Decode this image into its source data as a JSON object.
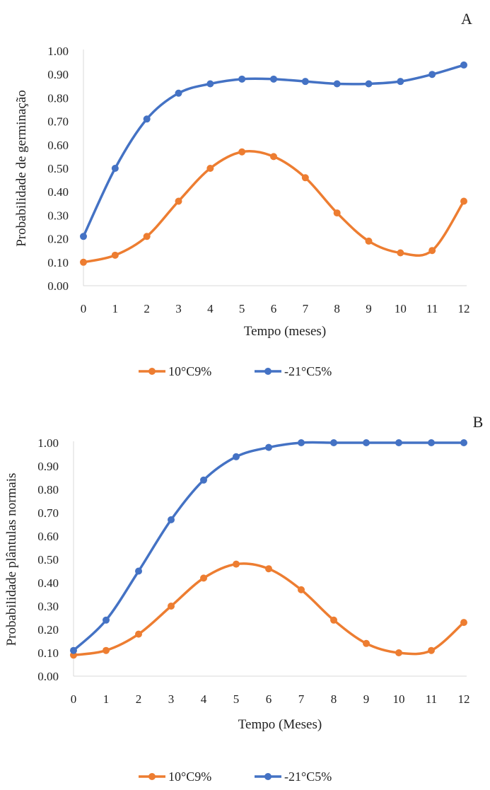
{
  "chart_data": [
    {
      "type": "line",
      "panel_label": "A",
      "title": "",
      "xlabel": "Tempo (meses)",
      "ylabel": "Probabilidade de germinação",
      "x": [
        0,
        1,
        2,
        3,
        4,
        5,
        6,
        7,
        8,
        9,
        10,
        11,
        12
      ],
      "ylim": [
        0,
        1
      ],
      "yticks": [
        "0.00",
        "0.10",
        "0.20",
        "0.30",
        "0.40",
        "0.50",
        "0.60",
        "0.70",
        "0.80",
        "0.90",
        "1.00"
      ],
      "grid": false,
      "legend_position": "bottom",
      "series": [
        {
          "name": "10°C9%",
          "color": "#ed7d31",
          "values": [
            0.1,
            0.13,
            0.21,
            0.36,
            0.5,
            0.57,
            0.55,
            0.46,
            0.31,
            0.19,
            0.14,
            0.15,
            0.36
          ]
        },
        {
          "name": "-21°C5%",
          "color": "#4472c4",
          "values": [
            0.21,
            0.5,
            0.71,
            0.82,
            0.86,
            0.88,
            0.88,
            0.87,
            0.86,
            0.86,
            0.87,
            0.9,
            0.94
          ]
        }
      ]
    },
    {
      "type": "line",
      "panel_label": "B",
      "title": "",
      "xlabel": "Tempo (Meses)",
      "ylabel": "Probabilidade plântulas normais",
      "x": [
        0,
        1,
        2,
        3,
        4,
        5,
        6,
        7,
        8,
        9,
        10,
        11,
        12
      ],
      "ylim": [
        0,
        1
      ],
      "yticks": [
        "0.00",
        "0.10",
        "0.20",
        "0.30",
        "0.40",
        "0.50",
        "0.60",
        "0.70",
        "0.80",
        "0.90",
        "1.00"
      ],
      "grid": false,
      "legend_position": "bottom",
      "series": [
        {
          "name": "10°C9%",
          "color": "#ed7d31",
          "values": [
            0.09,
            0.11,
            0.18,
            0.3,
            0.42,
            0.48,
            0.46,
            0.37,
            0.24,
            0.14,
            0.1,
            0.11,
            0.23
          ]
        },
        {
          "name": "-21°C5%",
          "color": "#4472c4",
          "values": [
            0.11,
            0.24,
            0.45,
            0.67,
            0.84,
            0.94,
            0.98,
            1.0,
            1.0,
            1.0,
            1.0,
            1.0,
            1.0
          ]
        }
      ]
    }
  ]
}
